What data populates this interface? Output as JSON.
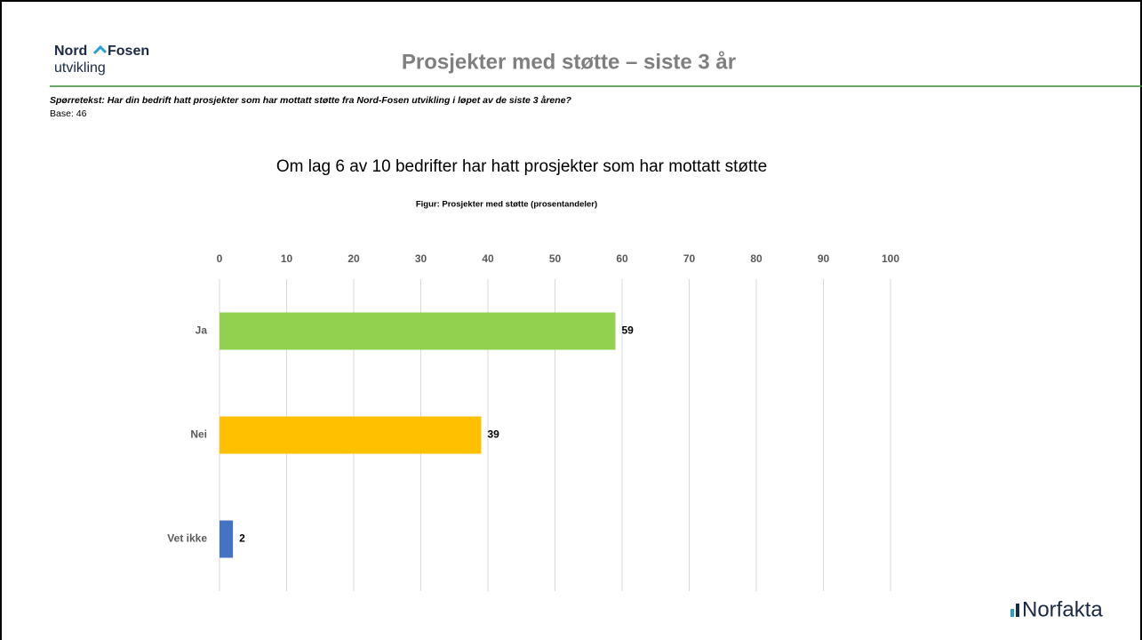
{
  "header": {
    "logo_top_left": "Nord",
    "logo_top_right": "Fosen",
    "logo_bottom": "utvikling",
    "title": "Prosjekter med støtte – siste 3 år"
  },
  "question": "Spørretekst: Har din bedrift hatt prosjekter som har mottatt støtte fra Nord-Fosen utvikling i løpet av de siste 3 årene?",
  "base": "Base: 46",
  "chart_data": {
    "type": "bar",
    "orientation": "horizontal",
    "title": "Om lag 6 av 10 bedrifter har hatt prosjekter som har mottatt støtte",
    "subtitle": "Figur: Prosjekter med støtte (prosentandeler)",
    "categories": [
      "Ja",
      "Nei",
      "Vet ikke"
    ],
    "values": [
      59,
      39,
      2
    ],
    "colors": [
      "#92d050",
      "#ffc000",
      "#4472c4"
    ],
    "xlim": [
      0,
      100
    ],
    "xticks": [
      0,
      10,
      20,
      30,
      40,
      50,
      60,
      70,
      80,
      90,
      100
    ],
    "grid": true
  },
  "footer": {
    "logo": "Norfakta"
  }
}
